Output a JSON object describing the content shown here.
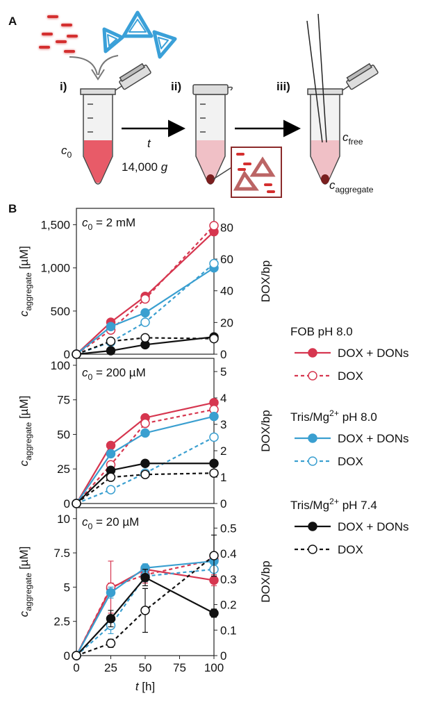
{
  "panel_labels": [
    "A",
    "B"
  ],
  "panel_a": {
    "steps": [
      "i)",
      "ii)",
      "iii)"
    ],
    "c0": [
      {
        "text": "c",
        "italic": true
      },
      {
        "text": "0",
        "sub": true
      }
    ],
    "time": [
      {
        "text": "t",
        "italic": true
      }
    ],
    "speed": [
      {
        "text": "14,000 "
      },
      {
        "text": "g",
        "italic": true
      }
    ],
    "cfree": [
      {
        "text": "c",
        "italic": true
      },
      {
        "text": "free",
        "sub": true
      }
    ],
    "caggregate": [
      {
        "text": "c",
        "italic": true
      },
      {
        "text": "aggregate",
        "sub": true
      }
    ]
  },
  "legend_groups": [
    [
      {
        "text": "FOB pH 8.0"
      }
    ],
    [
      {
        "text": "Tris/Mg"
      },
      {
        "text": "2+",
        "sup": true
      },
      {
        "text": " pH 8.0"
      }
    ],
    [
      {
        "text": "Tris/Mg"
      },
      {
        "text": "2+",
        "sup": true
      },
      {
        "text": " pH 7.4"
      }
    ]
  ],
  "chart_data": [
    {
      "type": "line",
      "annotation": [
        {
          "text": "c",
          "italic": true
        },
        {
          "text": "0",
          "sub": true
        },
        {
          "text": " = 2 mM"
        }
      ],
      "ylabel": [
        {
          "text": "c",
          "italic": true
        },
        {
          "text": "aggregate",
          "sub": true
        },
        {
          "text": " [µM]"
        }
      ],
      "y2label": "DOX/bp",
      "x": [
        0,
        25,
        50,
        100
      ],
      "xlim": [
        0,
        100
      ],
      "ylim": [
        0,
        1690
      ],
      "yticks": [
        0,
        500,
        {
          "value": 1000,
          "label": "1,000"
        },
        {
          "value": 1500,
          "label": "1,500"
        }
      ],
      "y2lim": [
        0,
        92
      ],
      "y2ticks": [
        0,
        20,
        40,
        60,
        80
      ],
      "series": [
        {
          "name": "DOX + DONs",
          "color": "#d6364f",
          "dashed": false,
          "marker": "filled",
          "values": [
            0,
            370,
            670,
            1420
          ]
        },
        {
          "name": "DOX",
          "color": "#d6364f",
          "dashed": true,
          "marker": "open",
          "values": [
            0,
            280,
            640,
            1490
          ]
        },
        {
          "name": "DOX + DONs",
          "color": "#3a9fd0",
          "dashed": false,
          "marker": "filled",
          "values": [
            0,
            320,
            480,
            1000
          ]
        },
        {
          "name": "DOX",
          "color": "#3a9fd0",
          "dashed": true,
          "marker": "open",
          "values": [
            0,
            140,
            370,
            1050
          ]
        },
        {
          "name": "DOX + DONs",
          "color": "#111111",
          "dashed": false,
          "marker": "filled",
          "values": [
            0,
            40,
            110,
            200
          ]
        },
        {
          "name": "DOX",
          "color": "#111111",
          "dashed": true,
          "marker": "open",
          "values": [
            0,
            150,
            190,
            180
          ]
        }
      ]
    },
    {
      "type": "line",
      "annotation": [
        {
          "text": "c",
          "italic": true
        },
        {
          "text": "0",
          "sub": true
        },
        {
          "text": " = 200 µM"
        }
      ],
      "ylabel": [
        {
          "text": "c",
          "italic": true
        },
        {
          "text": "aggregate",
          "sub": true
        },
        {
          "text": " [µM]"
        }
      ],
      "y2label": "DOX/bp",
      "x": [
        0,
        25,
        50,
        100
      ],
      "xlim": [
        0,
        100
      ],
      "ylim": [
        0,
        105
      ],
      "yticks": [
        0,
        25,
        50,
        75,
        100
      ],
      "y2lim": [
        0,
        5.5
      ],
      "y2ticks": [
        0,
        1,
        2,
        3,
        4,
        5
      ],
      "series": [
        {
          "name": "DOX + DONs",
          "color": "#d6364f",
          "dashed": false,
          "marker": "filled",
          "values": [
            0,
            42,
            62,
            73
          ]
        },
        {
          "name": "DOX",
          "color": "#d6364f",
          "dashed": true,
          "marker": "open",
          "values": [
            0,
            28,
            58,
            68
          ]
        },
        {
          "name": "DOX + DONs",
          "color": "#3a9fd0",
          "dashed": false,
          "marker": "filled",
          "values": [
            0,
            36,
            51,
            63
          ]
        },
        {
          "name": "DOX",
          "color": "#3a9fd0",
          "dashed": true,
          "marker": "open",
          "values": [
            0,
            10,
            22,
            48
          ]
        },
        {
          "name": "DOX + DONs",
          "color": "#111111",
          "dashed": false,
          "marker": "filled",
          "values": [
            0,
            24,
            29,
            29
          ]
        },
        {
          "name": "DOX",
          "color": "#111111",
          "dashed": true,
          "marker": "open",
          "values": [
            0,
            19,
            21,
            22
          ]
        }
      ]
    },
    {
      "type": "line",
      "annotation": [
        {
          "text": "c",
          "italic": true
        },
        {
          "text": "0",
          "sub": true
        },
        {
          "text": " = 20 µM"
        }
      ],
      "ylabel": [
        {
          "text": "c",
          "italic": true
        },
        {
          "text": "aggregate",
          "sub": true
        },
        {
          "text": " [µM]"
        }
      ],
      "y2label": "DOX/bp",
      "xlabel": [
        {
          "text": "t",
          "italic": true
        },
        {
          "text": " [h]"
        }
      ],
      "x": [
        0,
        25,
        50,
        100
      ],
      "xlim": [
        0,
        100
      ],
      "xticks": [
        0,
        25,
        50,
        75,
        100
      ],
      "ylim": [
        0,
        10.8
      ],
      "yticks": [
        0,
        2.5,
        5,
        7.5,
        10
      ],
      "y2lim": [
        0,
        0.58
      ],
      "y2ticks": [
        0,
        0.1,
        0.2,
        0.3,
        0.4,
        0.5
      ],
      "series": [
        {
          "name": "DOX + DONs",
          "color": "#d6364f",
          "dashed": false,
          "marker": "filled",
          "values": [
            0,
            4.9,
            6.3,
            5.5
          ],
          "errors": [
            null,
            0.4,
            0.3,
            0.4
          ]
        },
        {
          "name": "DOX",
          "color": "#d6364f",
          "dashed": true,
          "marker": "open",
          "values": [
            0,
            5.0,
            5.9,
            7.0
          ],
          "errors": [
            null,
            1.9,
            0.6,
            0.5
          ]
        },
        {
          "name": "DOX + DONs",
          "color": "#3a9fd0",
          "dashed": false,
          "marker": "filled",
          "values": [
            0,
            4.6,
            6.4,
            6.9
          ],
          "errors": [
            null,
            0.4,
            0.3,
            0.4
          ]
        },
        {
          "name": "DOX",
          "color": "#3a9fd0",
          "dashed": true,
          "marker": "open",
          "values": [
            0,
            2.2,
            5.8,
            6.3
          ],
          "errors": [
            null,
            0.6,
            0.4,
            0.5
          ]
        },
        {
          "name": "DOX + DONs",
          "color": "#111111",
          "dashed": false,
          "marker": "filled",
          "values": [
            0,
            2.7,
            5.7,
            3.1
          ],
          "errors": [
            null,
            0.6,
            0.6,
            0.3
          ]
        },
        {
          "name": "DOX",
          "color": "#111111",
          "dashed": true,
          "marker": "open",
          "values": [
            0,
            0.9,
            3.3,
            7.3
          ],
          "errors": [
            null,
            0.3,
            1.6,
            1.5
          ]
        }
      ]
    }
  ]
}
